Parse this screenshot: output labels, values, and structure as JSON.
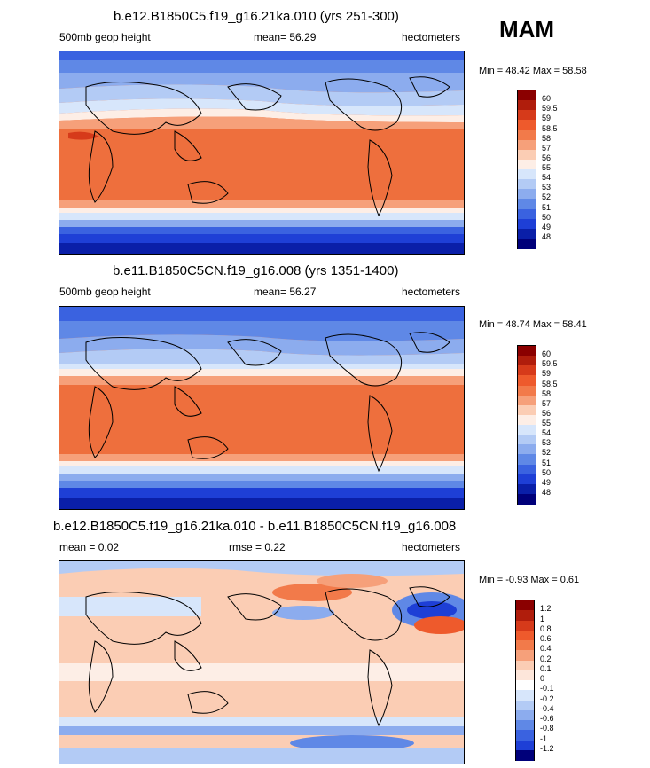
{
  "season": "MAM",
  "panels": [
    {
      "title": "b.e12.B1850C5.f19_g16.21ka.010 (yrs 251-300)",
      "left_label": "500mb geop height",
      "center_label": "mean=  56.29",
      "right_label": "hectometers",
      "minmax": "Min =  48.42 Max =  58.58",
      "colorbar_labels": [
        "60",
        "59.5",
        "59",
        "58.5",
        "58",
        "57",
        "56",
        "55",
        "54",
        "53",
        "52",
        "51",
        "50",
        "49",
        "48"
      ]
    },
    {
      "title": "b.e11.B1850C5CN.f19_g16.008 (yrs 1351-1400)",
      "left_label": "500mb geop height",
      "center_label": "mean=  56.27",
      "right_label": "hectometers",
      "minmax": "Min =  48.74 Max =  58.41",
      "colorbar_labels": [
        "60",
        "59.5",
        "59",
        "58.5",
        "58",
        "57",
        "56",
        "55",
        "54",
        "53",
        "52",
        "51",
        "50",
        "49",
        "48"
      ]
    },
    {
      "title": "b.e12.B1850C5.f19_g16.21ka.010 - b.e11.B1850C5CN.f19_g16.008",
      "left_label": "mean =   0.02",
      "center_label": "rmse =   0.22",
      "right_label": "hectometers",
      "minmax": "Min =  -0.93 Max =   0.61",
      "colorbar_labels": [
        "1.2",
        "1",
        "0.8",
        "0.6",
        "0.4",
        "0.2",
        "0.1",
        "0",
        "-0.1",
        "-0.2",
        "-0.4",
        "-0.6",
        "-0.8",
        "-1",
        "-1.2"
      ]
    }
  ],
  "colors": {
    "abs_scale": [
      "#8b0000",
      "#b01d0c",
      "#d63a1a",
      "#ee5a2c",
      "#f27a4a",
      "#f6a07a",
      "#fbcdb4",
      "#fdeee6",
      "#d7e6fb",
      "#b3cbf5",
      "#8cacee",
      "#5f88e6",
      "#3a62e0",
      "#1e3fd6",
      "#0a1fa8",
      "#00007a"
    ],
    "diff_scale": [
      "#8b0000",
      "#b01d0c",
      "#d63a1a",
      "#ee5a2c",
      "#f27a4a",
      "#f6a07a",
      "#fbcdb4",
      "#fde6da",
      "#ffffff",
      "#d7e6fb",
      "#b3cbf5",
      "#8cacee",
      "#5f88e6",
      "#3a62e0",
      "#1e3fd6",
      "#00007a"
    ]
  }
}
